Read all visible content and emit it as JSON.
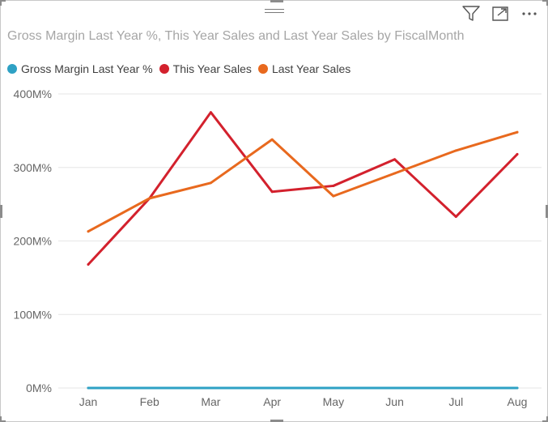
{
  "chart_data": {
    "type": "line",
    "title": "Gross Margin Last Year %, This Year Sales and Last Year Sales by FiscalMonth",
    "categories": [
      "Jan",
      "Feb",
      "Mar",
      "Apr",
      "May",
      "Jun",
      "Jul",
      "Aug"
    ],
    "ylim": [
      0,
      400
    ],
    "yticks": [
      0,
      100,
      200,
      300,
      400
    ],
    "ytick_labels": [
      "0M%",
      "100M%",
      "200M%",
      "300M%",
      "400M%"
    ],
    "grid": true,
    "legend_position": "top-left",
    "series": [
      {
        "name": "Gross Margin Last Year %",
        "color": "#2ea1c4",
        "values": [
          0,
          0,
          0,
          0,
          0,
          0,
          0,
          0
        ]
      },
      {
        "name": "This Year Sales",
        "color": "#d3212d",
        "values": [
          168,
          258,
          375,
          267,
          275,
          311,
          233,
          318
        ]
      },
      {
        "name": "Last Year Sales",
        "color": "#e8691e",
        "values": [
          213,
          258,
          279,
          338,
          261,
          292,
          323,
          348
        ]
      }
    ]
  },
  "toolbar": {
    "filter_icon": "filter-icon",
    "focus_icon": "focus-mode-icon",
    "more_icon": "more-options-icon"
  }
}
